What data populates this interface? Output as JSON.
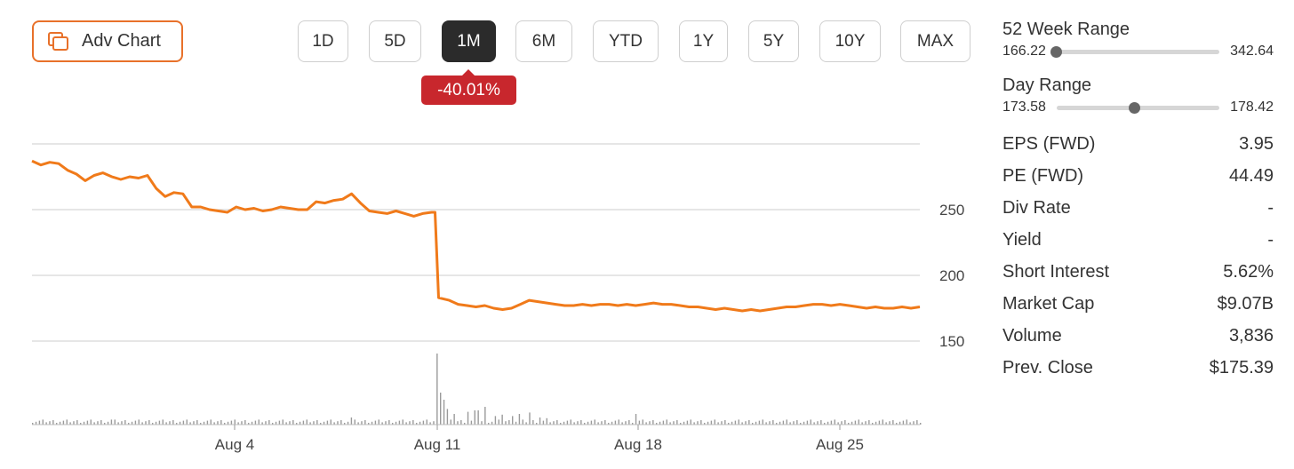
{
  "toolbar": {
    "adv_chart_label": "Adv Chart",
    "ranges": [
      "1D",
      "5D",
      "1M",
      "6M",
      "YTD",
      "1Y",
      "5Y",
      "10Y",
      "MAX"
    ],
    "active_range": "1M",
    "change_badge": "-40.01%"
  },
  "colors": {
    "accent": "#e8712a",
    "line": "#f07a1a",
    "negative": "#c8272d",
    "active_bg": "#2b2b2b"
  },
  "chart_data": {
    "type": "line",
    "y_ticks": [
      "250",
      "200",
      "150"
    ],
    "x_ticks": [
      "Aug 4",
      "Aug 11",
      "Aug 18",
      "Aug 25"
    ],
    "ylim": [
      135,
      300
    ],
    "price": [
      [
        0.0,
        287
      ],
      [
        0.01,
        284
      ],
      [
        0.02,
        286
      ],
      [
        0.03,
        285
      ],
      [
        0.04,
        280
      ],
      [
        0.05,
        277
      ],
      [
        0.06,
        272
      ],
      [
        0.07,
        276
      ],
      [
        0.08,
        278
      ],
      [
        0.09,
        275
      ],
      [
        0.1,
        273
      ],
      [
        0.11,
        275
      ],
      [
        0.12,
        274
      ],
      [
        0.13,
        276
      ],
      [
        0.14,
        266
      ],
      [
        0.15,
        260
      ],
      [
        0.16,
        263
      ],
      [
        0.17,
        262
      ],
      [
        0.18,
        252
      ],
      [
        0.19,
        252
      ],
      [
        0.2,
        250
      ],
      [
        0.21,
        249
      ],
      [
        0.22,
        248
      ],
      [
        0.23,
        252
      ],
      [
        0.24,
        250
      ],
      [
        0.25,
        251
      ],
      [
        0.26,
        249
      ],
      [
        0.27,
        250
      ],
      [
        0.28,
        252
      ],
      [
        0.29,
        251
      ],
      [
        0.3,
        250
      ],
      [
        0.31,
        250
      ],
      [
        0.32,
        256
      ],
      [
        0.33,
        255
      ],
      [
        0.34,
        257
      ],
      [
        0.35,
        258
      ],
      [
        0.36,
        262
      ],
      [
        0.37,
        255
      ],
      [
        0.38,
        249
      ],
      [
        0.39,
        248
      ],
      [
        0.4,
        247
      ],
      [
        0.41,
        249
      ],
      [
        0.42,
        247
      ],
      [
        0.43,
        245
      ],
      [
        0.44,
        247
      ],
      [
        0.45,
        248
      ],
      [
        0.454,
        248
      ],
      [
        0.458,
        183
      ],
      [
        0.47,
        181
      ],
      [
        0.48,
        178
      ],
      [
        0.49,
        177
      ],
      [
        0.5,
        176
      ],
      [
        0.51,
        177
      ],
      [
        0.52,
        175
      ],
      [
        0.53,
        174
      ],
      [
        0.54,
        175
      ],
      [
        0.55,
        178
      ],
      [
        0.56,
        181
      ],
      [
        0.57,
        180
      ],
      [
        0.58,
        179
      ],
      [
        0.59,
        178
      ],
      [
        0.6,
        177
      ],
      [
        0.61,
        177
      ],
      [
        0.62,
        178
      ],
      [
        0.63,
        177
      ],
      [
        0.64,
        178
      ],
      [
        0.65,
        178
      ],
      [
        0.66,
        177
      ],
      [
        0.67,
        178
      ],
      [
        0.68,
        177
      ],
      [
        0.69,
        178
      ],
      [
        0.7,
        179
      ],
      [
        0.71,
        178
      ],
      [
        0.72,
        178
      ],
      [
        0.73,
        177
      ],
      [
        0.74,
        176
      ],
      [
        0.75,
        176
      ],
      [
        0.76,
        175
      ],
      [
        0.77,
        174
      ],
      [
        0.78,
        175
      ],
      [
        0.79,
        174
      ],
      [
        0.8,
        173
      ],
      [
        0.81,
        174
      ],
      [
        0.82,
        173
      ],
      [
        0.83,
        174
      ],
      [
        0.84,
        175
      ],
      [
        0.85,
        176
      ],
      [
        0.86,
        176
      ],
      [
        0.87,
        177
      ],
      [
        0.88,
        178
      ],
      [
        0.89,
        178
      ],
      [
        0.9,
        177
      ],
      [
        0.91,
        178
      ],
      [
        0.92,
        177
      ],
      [
        0.93,
        176
      ],
      [
        0.94,
        175
      ],
      [
        0.95,
        176
      ],
      [
        0.96,
        175
      ],
      [
        0.97,
        175
      ],
      [
        0.98,
        176
      ],
      [
        0.99,
        175
      ],
      [
        1.0,
        176
      ]
    ],
    "volume_spikes": [
      [
        0.454,
        1.0
      ],
      [
        0.458,
        0.45
      ],
      [
        0.462,
        0.35
      ],
      [
        0.468,
        0.22
      ],
      [
        0.475,
        0.15
      ],
      [
        0.49,
        0.18
      ],
      [
        0.5,
        0.2
      ],
      [
        0.51,
        0.25
      ],
      [
        0.52,
        0.12
      ],
      [
        0.53,
        0.14
      ],
      [
        0.54,
        0.12
      ],
      [
        0.55,
        0.15
      ],
      [
        0.56,
        0.17
      ],
      [
        0.57,
        0.1
      ],
      [
        0.58,
        0.09
      ],
      [
        0.68,
        0.15
      ],
      [
        0.36,
        0.1
      ],
      [
        0.09,
        0.07
      ]
    ]
  },
  "stats": {
    "week52": {
      "label": "52 Week Range",
      "low": "166.22",
      "high": "342.64",
      "position": 0.0
    },
    "day": {
      "label": "Day Range",
      "low": "173.58",
      "high": "178.42",
      "position": 0.48
    },
    "rows": [
      {
        "label": "EPS (FWD)",
        "value": "3.95"
      },
      {
        "label": "PE (FWD)",
        "value": "44.49"
      },
      {
        "label": "Div Rate",
        "value": "-"
      },
      {
        "label": "Yield",
        "value": "-"
      },
      {
        "label": "Short Interest",
        "value": "5.62%"
      },
      {
        "label": "Market Cap",
        "value": "$9.07B"
      },
      {
        "label": "Volume",
        "value": "3,836"
      },
      {
        "label": "Prev. Close",
        "value": "$175.39"
      }
    ]
  }
}
